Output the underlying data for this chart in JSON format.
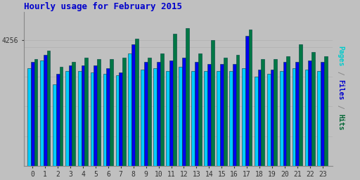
{
  "title": "Hourly usage for February 2015",
  "title_color": "#0000cc",
  "title_fontsize": 9,
  "background_color": "#c0c0c0",
  "plot_bg_color": "#c0c0c0",
  "bar_border_color": "#004040",
  "ylim": [
    0,
    5200
  ],
  "ytick_val": 4256,
  "hours": [
    0,
    1,
    2,
    3,
    4,
    5,
    6,
    7,
    8,
    9,
    10,
    11,
    12,
    13,
    14,
    15,
    16,
    17,
    18,
    19,
    20,
    21,
    22,
    23
  ],
  "pages": [
    3300,
    3550,
    2750,
    3200,
    3200,
    3150,
    3100,
    3050,
    3800,
    3250,
    3300,
    3200,
    3350,
    3200,
    3200,
    3200,
    3200,
    3300,
    3000,
    3100,
    3200,
    3300,
    3250,
    3200
  ],
  "files": [
    3500,
    3750,
    3100,
    3400,
    3400,
    3400,
    3300,
    3150,
    4100,
    3500,
    3500,
    3550,
    3650,
    3500,
    3450,
    3450,
    3450,
    4400,
    3250,
    3250,
    3500,
    3500,
    3550,
    3500
  ],
  "hits": [
    3600,
    3900,
    3350,
    3500,
    3650,
    3600,
    3600,
    3650,
    4300,
    3650,
    3800,
    4450,
    4650,
    3800,
    4250,
    3650,
    3750,
    4600,
    3600,
    3600,
    3700,
    4100,
    3850,
    3700
  ],
  "pages_color": "#00ccff",
  "files_color": "#0000ee",
  "hits_color": "#007744",
  "bar_width": 0.27,
  "grid_color": "#b0b0b0",
  "right_label_parts": [
    "Pages",
    " / ",
    "Files",
    " / ",
    "Hits"
  ],
  "right_label_colors": [
    "#00cccc",
    "#888888",
    "#0000cc",
    "#888888",
    "#006633"
  ],
  "tick_fontsize": 7
}
